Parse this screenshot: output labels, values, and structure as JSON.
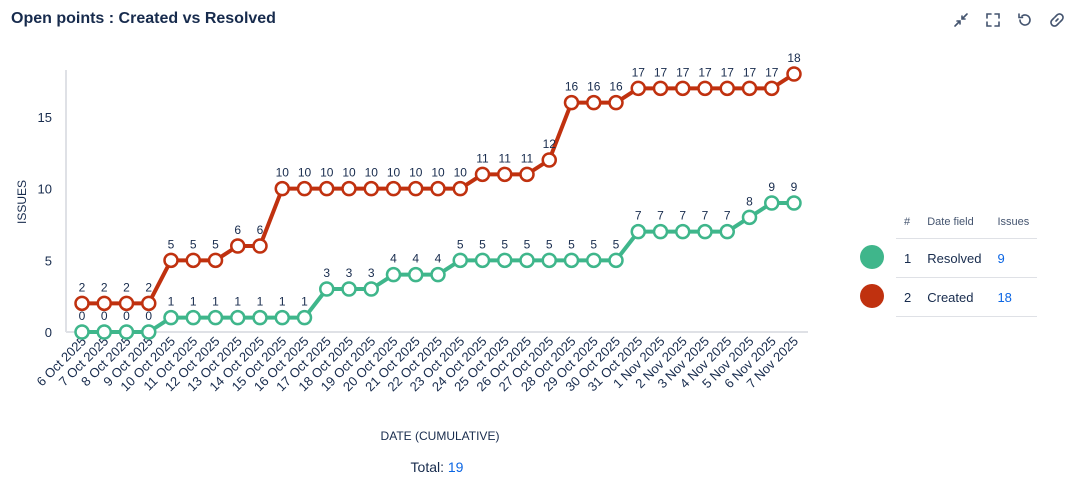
{
  "header": {
    "title": "Open points : Created vs Resolved",
    "icons": [
      "minimize-icon",
      "fullscreen-icon",
      "refresh-icon",
      "link-icon"
    ]
  },
  "legend": {
    "headers": [
      "#",
      "Date field",
      "Issues"
    ],
    "rows": [
      {
        "index": "1",
        "field": "Resolved",
        "issues": "9",
        "color": "#3fb68b"
      },
      {
        "index": "2",
        "field": "Created",
        "issues": "18",
        "color": "#c0310f"
      }
    ]
  },
  "total": {
    "label": "Total:",
    "value": "19"
  },
  "chart_data": {
    "type": "line",
    "xlabel": "DATE (CUMULATIVE)",
    "ylabel": "ISSUES",
    "ylim": [
      0,
      18
    ],
    "yticks": [
      0,
      5,
      10,
      15
    ],
    "grid": false,
    "categories": [
      "6 Oct 2025",
      "7 Oct 2025",
      "8 Oct 2025",
      "9 Oct 2025",
      "10 Oct 2025",
      "11 Oct 2025",
      "12 Oct 2025",
      "13 Oct 2025",
      "14 Oct 2025",
      "15 Oct 2025",
      "16 Oct 2025",
      "17 Oct 2025",
      "18 Oct 2025",
      "19 Oct 2025",
      "20 Oct 2025",
      "21 Oct 2025",
      "22 Oct 2025",
      "23 Oct 2025",
      "24 Oct 2025",
      "25 Oct 2025",
      "26 Oct 2025",
      "27 Oct 2025",
      "28 Oct 2025",
      "29 Oct 2025",
      "30 Oct 2025",
      "31 Oct 2025",
      "1 Nov 2025",
      "2 Nov 2025",
      "3 Nov 2025",
      "4 Nov 2025",
      "5 Nov 2025",
      "6 Nov 2025",
      "7 Nov 2025"
    ],
    "series": [
      {
        "name": "Created",
        "color": "#c0310f",
        "values": [
          2,
          2,
          2,
          2,
          5,
          5,
          5,
          6,
          6,
          10,
          10,
          10,
          10,
          10,
          10,
          10,
          10,
          10,
          11,
          11,
          11,
          12,
          16,
          16,
          16,
          17,
          17,
          17,
          17,
          17,
          17,
          17,
          18
        ]
      },
      {
        "name": "Resolved",
        "color": "#3fb68b",
        "values": [
          0,
          0,
          0,
          0,
          1,
          1,
          1,
          1,
          1,
          1,
          1,
          3,
          3,
          3,
          4,
          4,
          4,
          5,
          5,
          5,
          5,
          5,
          5,
          5,
          5,
          7,
          7,
          7,
          7,
          7,
          8,
          9,
          9
        ]
      }
    ]
  }
}
